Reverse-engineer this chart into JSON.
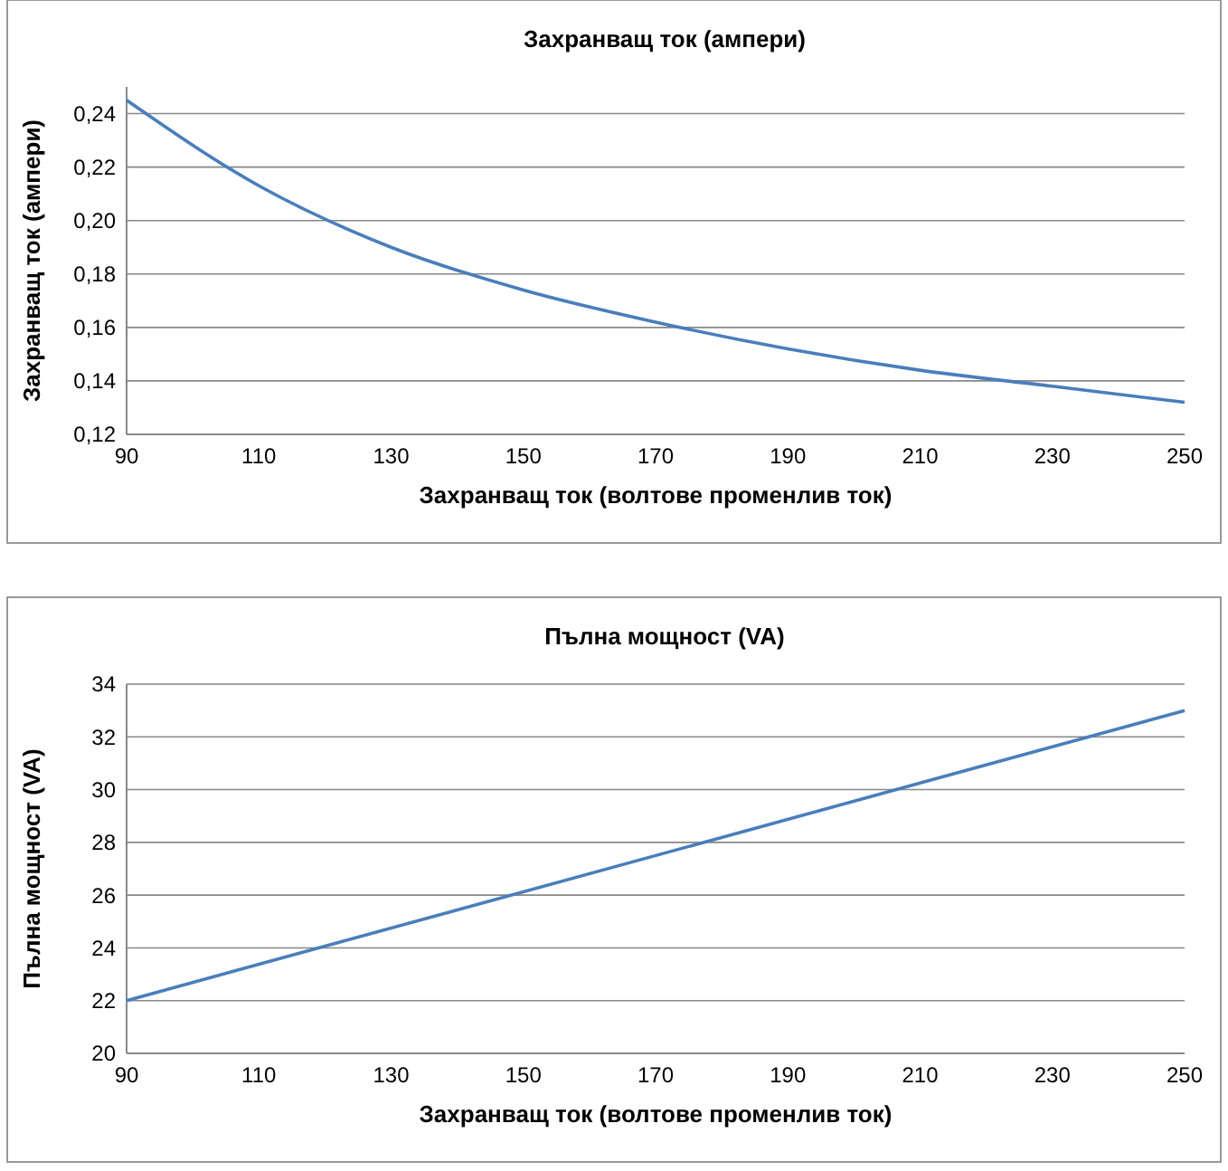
{
  "chart_data": [
    {
      "type": "line",
      "title": "Захранващ ток (ампери)",
      "xlabel": "Захранващ ток (волтове променлив ток)",
      "ylabel": "Захранващ ток (ампери)",
      "x": [
        90,
        110,
        130,
        150,
        170,
        190,
        210,
        230,
        250
      ],
      "series": [
        {
          "color": "#4a7ebb",
          "values": [
            0.245,
            0.213,
            0.19,
            0.174,
            0.162,
            0.152,
            0.144,
            0.138,
            0.132
          ]
        }
      ],
      "xlim": [
        90,
        250
      ],
      "xticks": [
        90,
        110,
        130,
        150,
        170,
        190,
        210,
        230,
        250
      ],
      "ylim": [
        0.12,
        0.25
      ],
      "yticks": [
        {
          "value": 0.12,
          "label": "0,12"
        },
        {
          "value": 0.14,
          "label": "0,14"
        },
        {
          "value": 0.16,
          "label": "0,16"
        },
        {
          "value": 0.18,
          "label": "0,18"
        },
        {
          "value": 0.2,
          "label": "0,20"
        },
        {
          "value": 0.22,
          "label": "0,22"
        },
        {
          "value": 0.24,
          "label": "0,24"
        }
      ],
      "grid": "y",
      "marker": "none",
      "line_style": "solid"
    },
    {
      "type": "line",
      "title": "Пълна мощност (VA)",
      "xlabel": "Захранващ ток (волтове променлив ток)",
      "ylabel": "Пълна мощност (VA)",
      "x": [
        90,
        250
      ],
      "series": [
        {
          "color": "#4a7ebb",
          "values": [
            22,
            33
          ]
        }
      ],
      "xlim": [
        90,
        250
      ],
      "xticks": [
        90,
        110,
        130,
        150,
        170,
        190,
        210,
        230,
        250
      ],
      "ylim": [
        20,
        34
      ],
      "yticks": [
        20,
        22,
        24,
        26,
        28,
        30,
        32,
        34
      ],
      "grid": "y",
      "marker": "none",
      "line_style": "solid"
    }
  ]
}
